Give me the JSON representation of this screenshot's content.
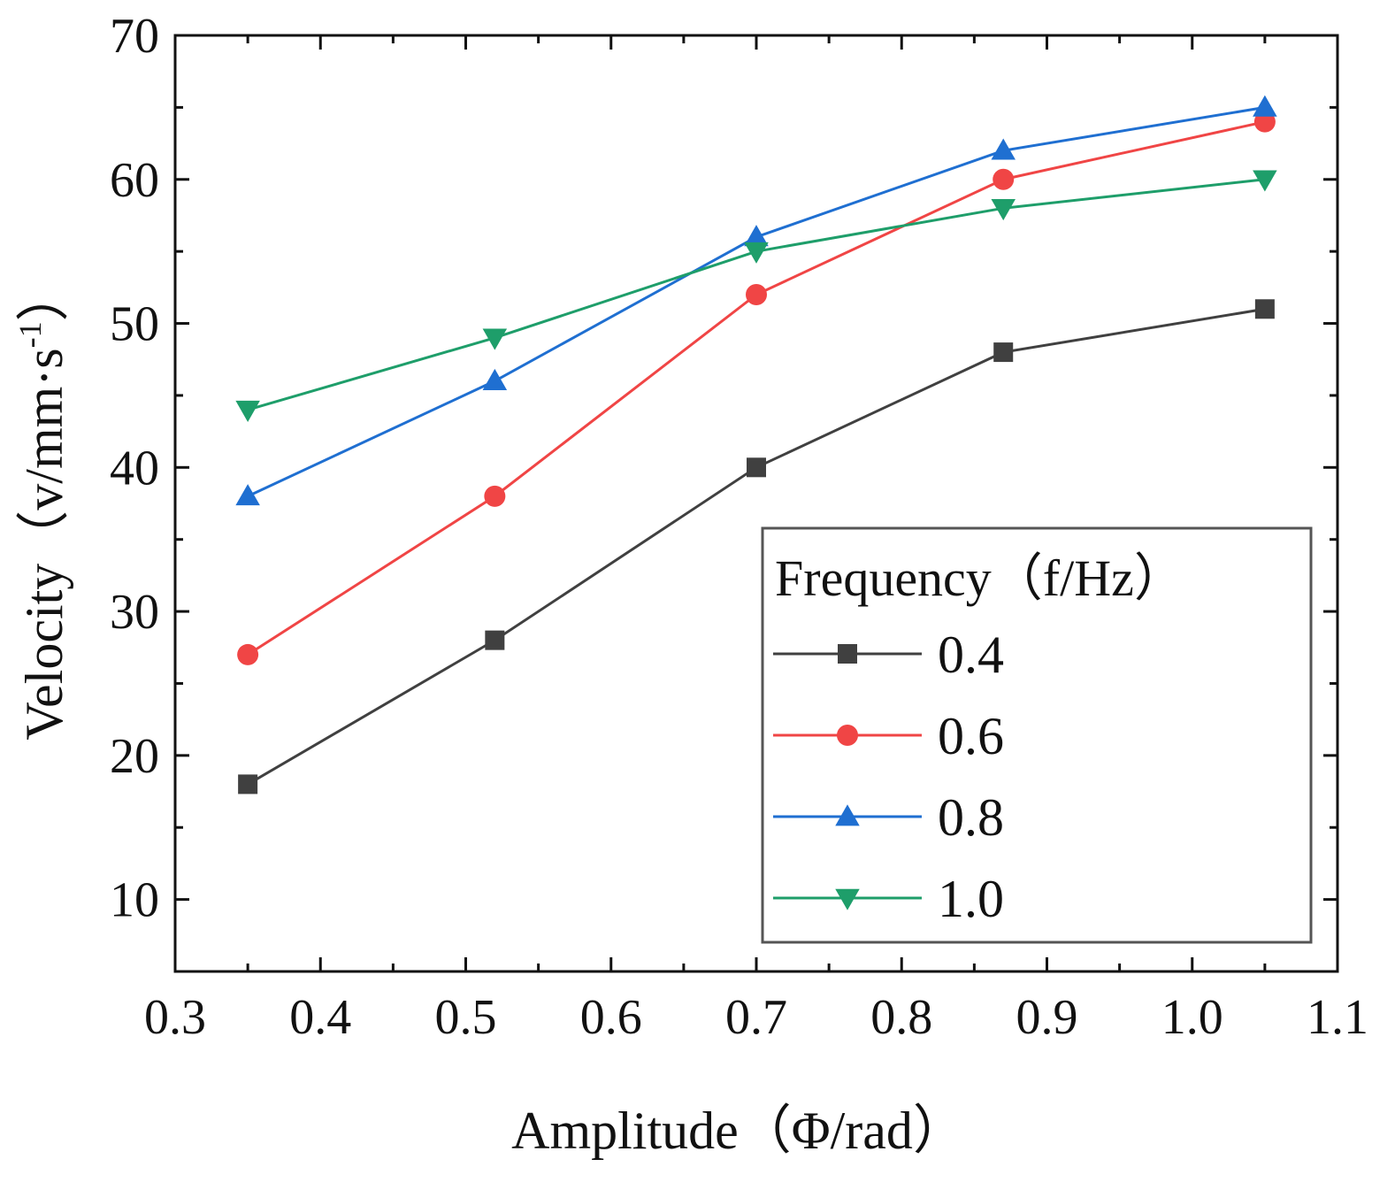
{
  "chart_data": {
    "type": "line",
    "title": "",
    "xlabel": "Amplitude（Φ/rad）",
    "ylabel_main": "Velocity（v/mm·s",
    "ylabel_sup": "-1",
    "ylabel_close": "）",
    "xlim": [
      0.3,
      1.1
    ],
    "ylim": [
      5,
      70
    ],
    "xticks": [
      0.3,
      0.4,
      0.5,
      0.6,
      0.7,
      0.8,
      0.9,
      1.0,
      1.1
    ],
    "xtick_labels": [
      "0.3",
      "0.4",
      "0.5",
      "0.6",
      "0.7",
      "0.8",
      "0.9",
      "1.0",
      "1.1"
    ],
    "yticks": [
      10,
      20,
      30,
      40,
      50,
      60,
      70
    ],
    "ytick_labels": [
      "10",
      "20",
      "30",
      "40",
      "50",
      "60",
      "70"
    ],
    "grid": false,
    "legend_title": "Frequency（f/Hz）",
    "legend_position": "bottom-right",
    "x": [
      0.35,
      0.52,
      0.7,
      0.87,
      1.05
    ],
    "series": [
      {
        "name": "0.4",
        "color": "#404040",
        "marker": "square",
        "values": [
          18,
          28,
          40,
          48,
          51
        ]
      },
      {
        "name": "0.6",
        "color": "#f04545",
        "marker": "circle",
        "values": [
          27,
          38,
          52,
          60,
          64
        ]
      },
      {
        "name": "0.8",
        "color": "#1f6fd1",
        "marker": "triangle-up",
        "values": [
          38,
          46,
          56,
          62,
          65
        ]
      },
      {
        "name": "1.0",
        "color": "#1e9e6a",
        "marker": "triangle-down",
        "values": [
          44,
          49,
          55,
          58,
          60
        ]
      }
    ]
  }
}
